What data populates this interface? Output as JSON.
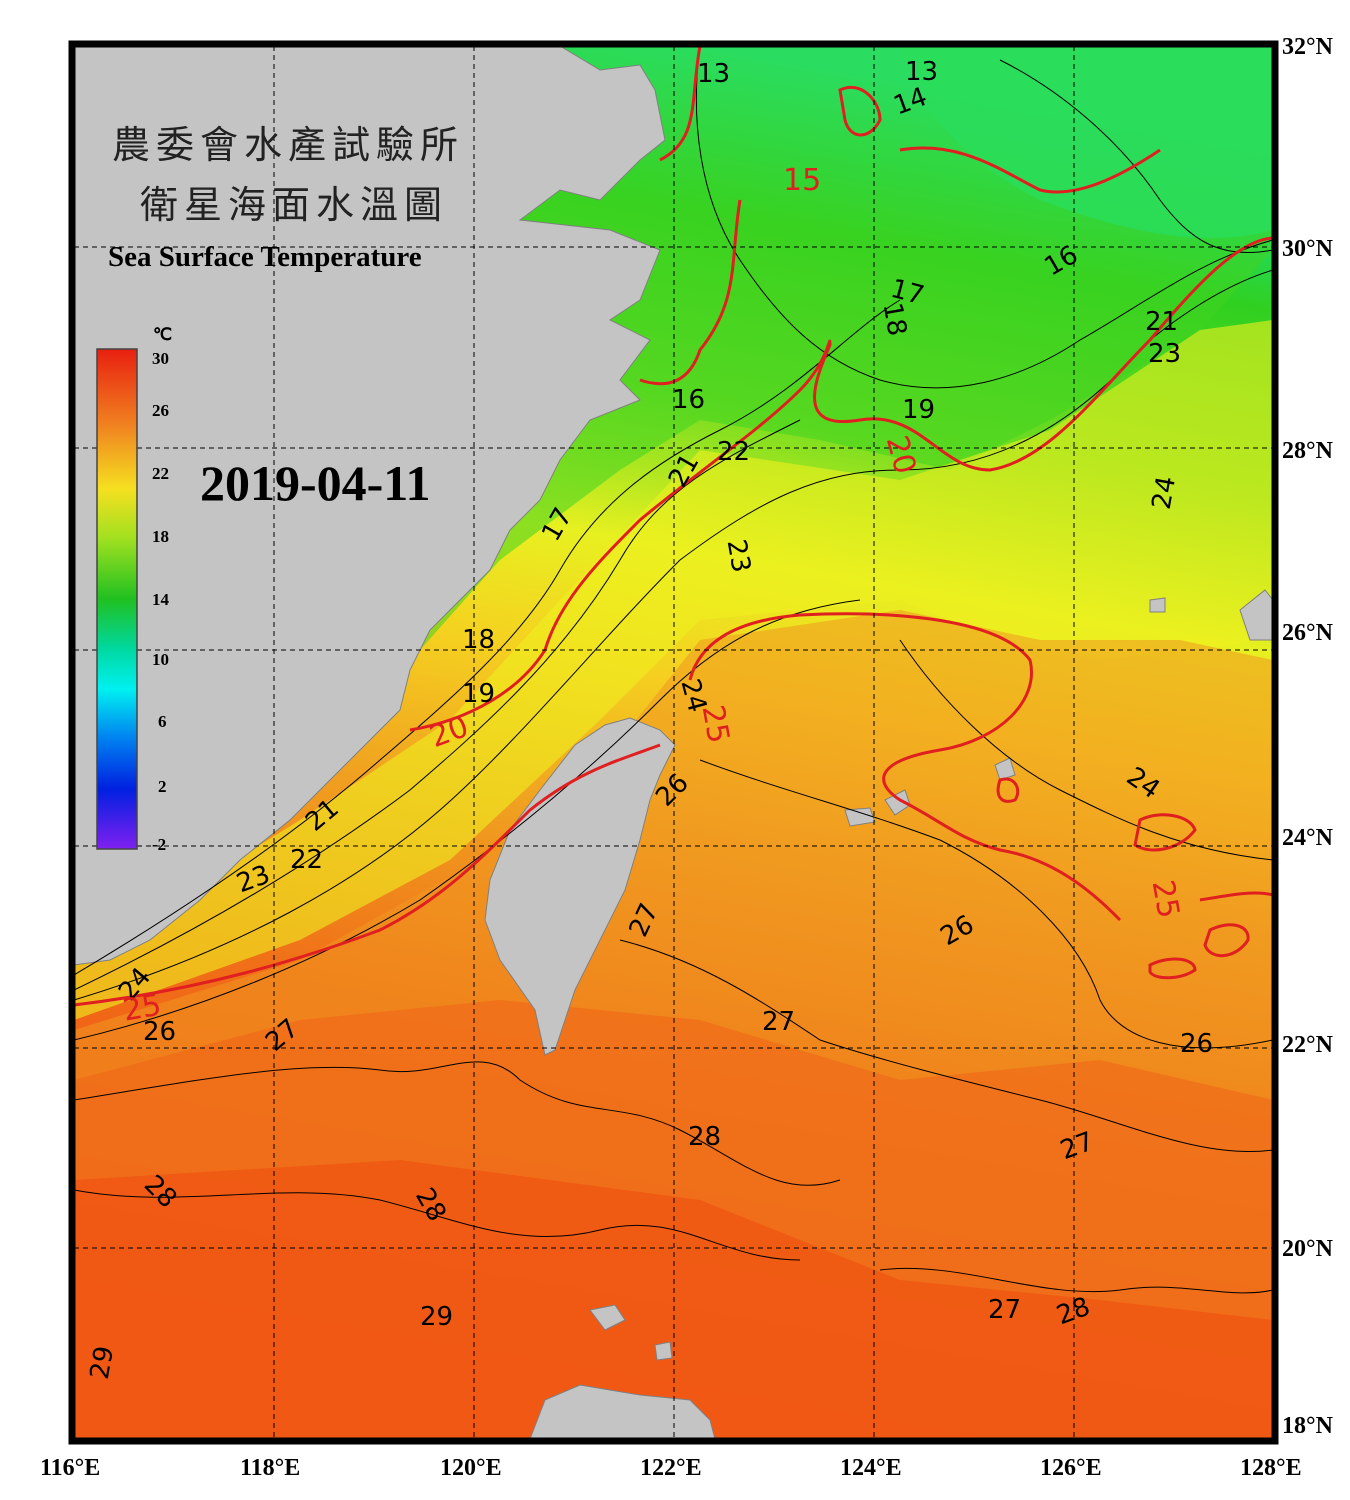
{
  "title": {
    "zh_line1": "農委會水產試驗所",
    "zh_line2": "衛星海面水溫圖",
    "en": "Sea Surface Temperature"
  },
  "date": "2019-04-11",
  "legend": {
    "unit": "℃",
    "ticks": [
      "30",
      "26",
      "22",
      "18",
      "14",
      "10",
      "6",
      "2",
      "-2"
    ]
  },
  "axes": {
    "lon_labels": [
      "116°E",
      "118°E",
      "120°E",
      "122°E",
      "124°E",
      "126°E",
      "128°E"
    ],
    "lat_labels": [
      "32°N",
      "30°N",
      "28°N",
      "26°N",
      "24°N",
      "22°N",
      "20°N",
      "18°N"
    ]
  },
  "contour_labels": {
    "black": [
      "13",
      "13",
      "14",
      "16",
      "16",
      "17",
      "18",
      "19",
      "21",
      "22",
      "23",
      "21",
      "23",
      "24",
      "17",
      "18",
      "19",
      "21",
      "22",
      "23",
      "24",
      "26",
      "24",
      "26",
      "27",
      "24",
      "26",
      "27",
      "26",
      "27",
      "28",
      "27",
      "28",
      "28",
      "29",
      "29",
      "27",
      "28"
    ],
    "red": [
      "15",
      "20",
      "20",
      "25",
      "25",
      "25"
    ]
  },
  "colors": {
    "land": "#c4c4c4",
    "frame": "#000000",
    "isotherm_major": "#e02020",
    "isotherm_minor": "#000000",
    "sst_cold": "#00e8b0",
    "sst_green": "#30d020",
    "sst_yellow": "#f0f020",
    "sst_orange": "#f0a020",
    "sst_red": "#f05018"
  }
}
